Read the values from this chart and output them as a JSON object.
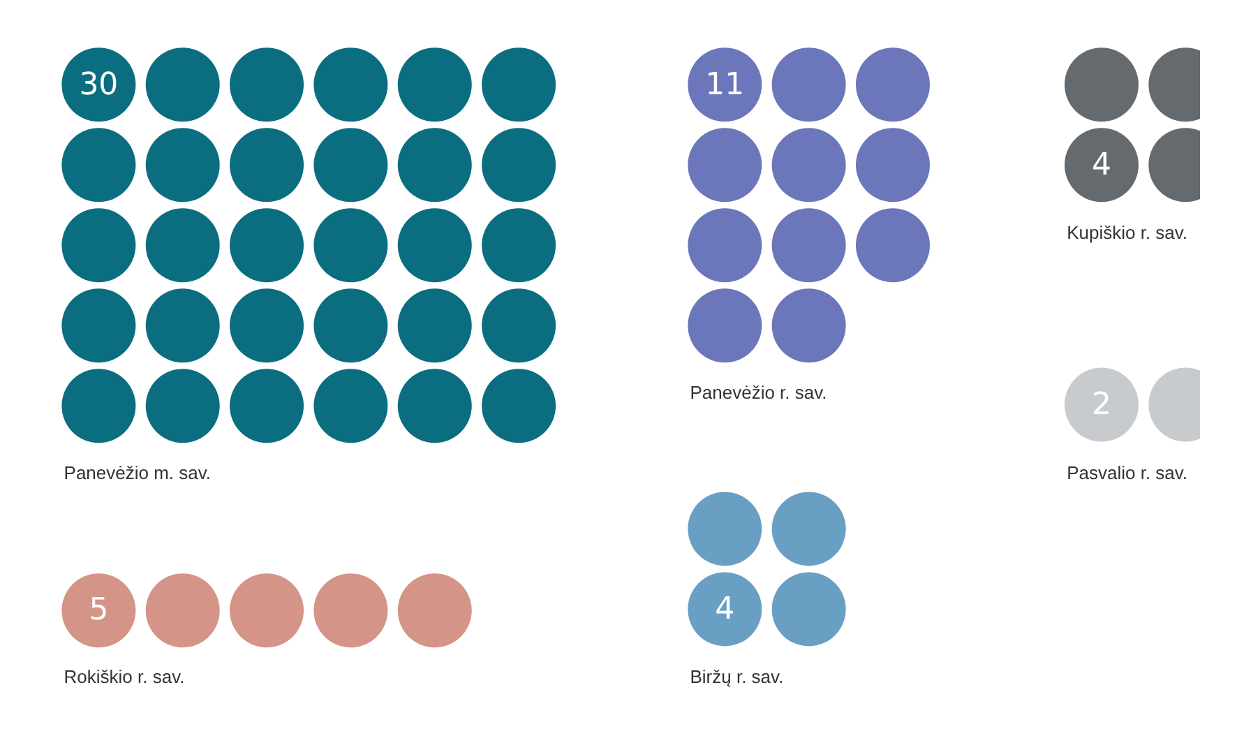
{
  "chart_data": {
    "type": "other",
    "categories": [
      "Panevėžio m. sav.",
      "Panevėžio r. sav.",
      "Kupiškio r. sav.",
      "Pasvalio r. sav.",
      "Rokiškio r. sav.",
      "Biržų r. sav."
    ],
    "values": [
      30,
      11,
      4,
      2,
      5,
      4
    ],
    "colors": [
      "#0b6e80",
      "#6b76bb",
      "#656a6e",
      "#c8cbce",
      "#d49488",
      "#6a9fc4"
    ],
    "data_labels": true
  }
}
